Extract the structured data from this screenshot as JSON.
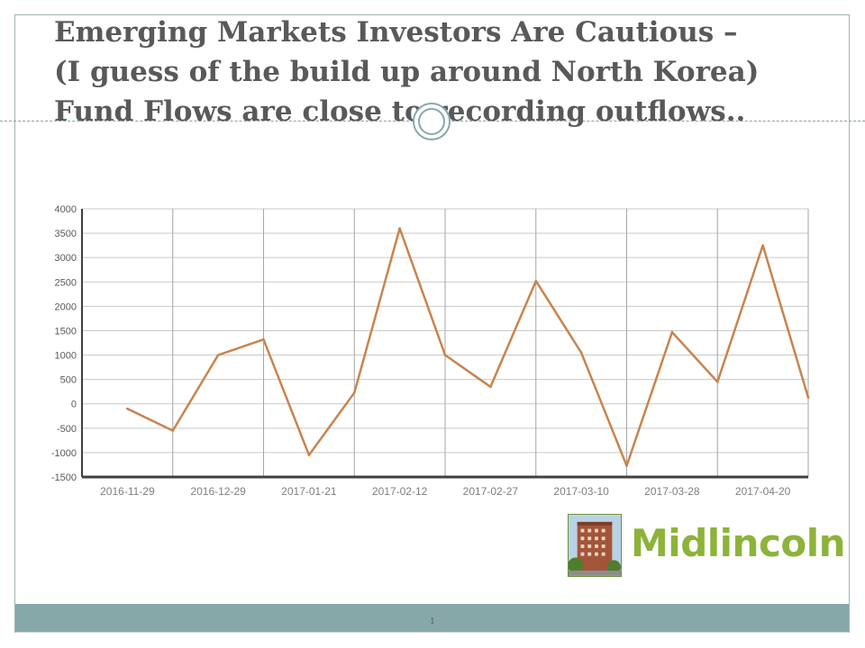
{
  "slide": {
    "title_lines": [
      "Emerging Markets Investors Are Cautious –",
      "(I guess of the build up around North Korea)",
      "Fund Flows are close to recording outflows.."
    ],
    "logo_text": "Midlincoln",
    "slide_number": "1"
  },
  "colors": {
    "title": "#595959",
    "line": "#c8844e",
    "grid": "#7f7f7f",
    "footer": "#86a8a8",
    "logo": "#8db33a"
  },
  "chart_data": {
    "type": "line",
    "title": "",
    "xlabel": "",
    "ylabel": "",
    "ylim": [
      -1500,
      4000
    ],
    "yticks": [
      4000,
      3500,
      3000,
      2500,
      2000,
      1500,
      1000,
      500,
      0,
      -500,
      -1000,
      -1500
    ],
    "xtick_labels": [
      "2016-11-29",
      "2016-12-29",
      "2017-01-21",
      "2017-02-12",
      "2017-02-27",
      "2017-03-10",
      "2017-03-28",
      "2017-04-20"
    ],
    "grid": true,
    "series": [
      {
        "color": "#c8844e",
        "values": [
          -100,
          -550,
          1000,
          1320,
          -1050,
          230,
          3600,
          1000,
          350,
          2520,
          1050,
          -1270,
          1470,
          450,
          3250,
          130
        ]
      }
    ]
  }
}
